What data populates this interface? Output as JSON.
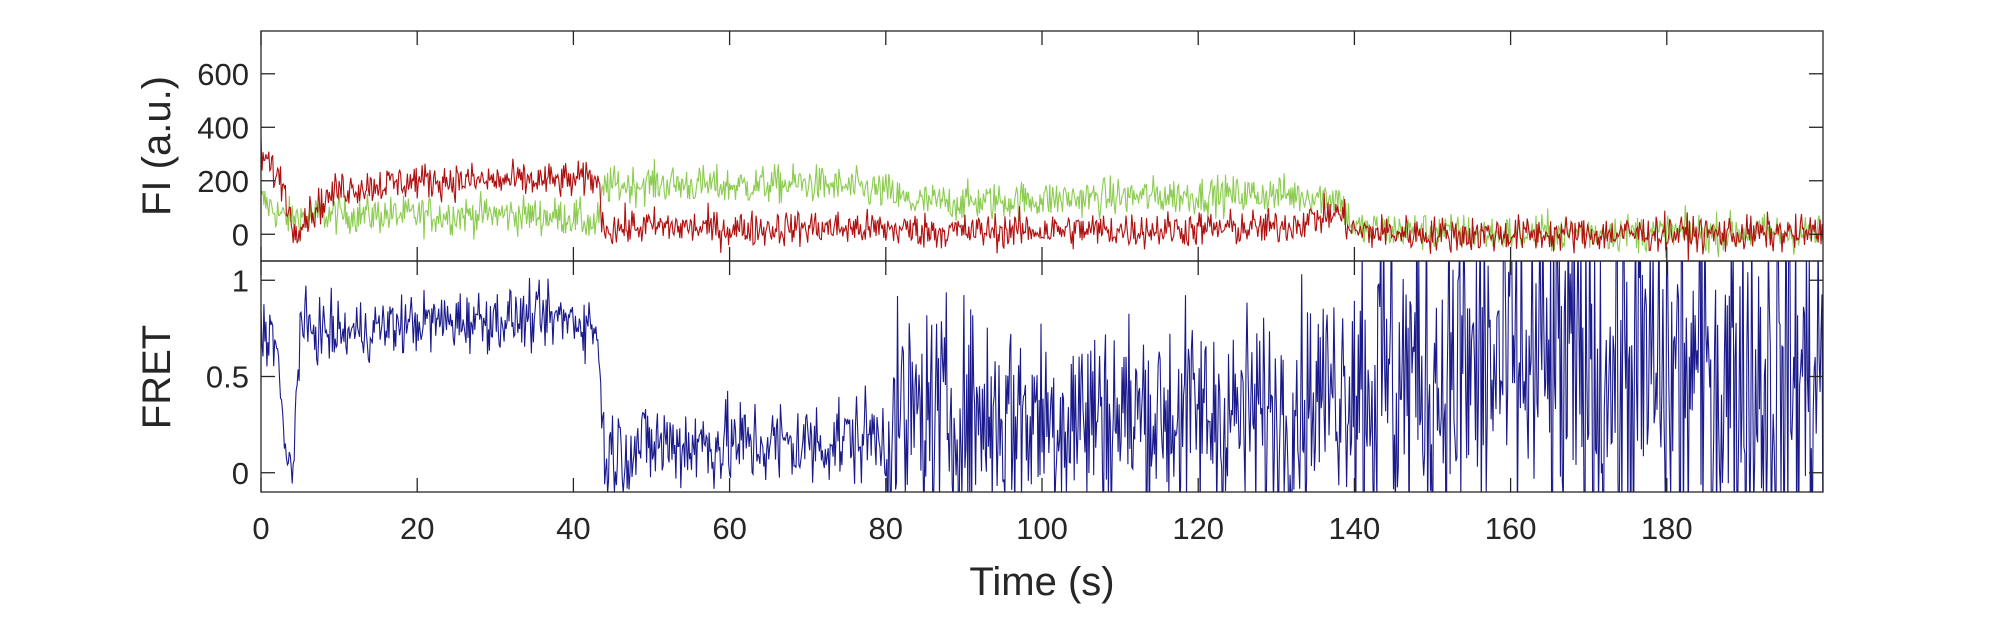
{
  "chart_data": [
    {
      "panel": "top",
      "type": "line",
      "xlabel": "",
      "ylabel": "FI (a.u.)",
      "xlim": [
        0,
        200
      ],
      "ylim": [
        -100,
        760
      ],
      "yticks": [
        0,
        200,
        400,
        600
      ],
      "ytick_labels": [
        "0",
        "200",
        "400",
        "600"
      ],
      "series": [
        {
          "color": "#8ccc50",
          "x": [
            0,
            3,
            10,
            20,
            30,
            40,
            43,
            44,
            50,
            60,
            70,
            80,
            83,
            90,
            100,
            110,
            120,
            130,
            138,
            140,
            150,
            160,
            170,
            180,
            190,
            200
          ],
          "values": [
            130,
            60,
            75,
            70,
            75,
            65,
            30,
            180,
            190,
            180,
            190,
            160,
            120,
            120,
            130,
            140,
            145,
            150,
            140,
            20,
            10,
            0,
            10,
            5,
            5,
            0
          ]
        },
        {
          "color": "#b01010",
          "x": [
            0,
            3,
            4,
            10,
            20,
            30,
            40,
            43,
            44,
            50,
            60,
            70,
            80,
            90,
            100,
            110,
            120,
            130,
            138,
            140,
            150,
            160,
            170,
            180,
            190,
            200
          ],
          "values": [
            300,
            180,
            20,
            170,
            200,
            200,
            200,
            210,
            20,
            30,
            20,
            25,
            20,
            10,
            15,
            15,
            20,
            25,
            80,
            10,
            0,
            0,
            0,
            5,
            0,
            5
          ]
        }
      ]
    },
    {
      "panel": "bottom",
      "type": "line",
      "xlabel": "Time (s)",
      "ylabel": "FRET",
      "xlim": [
        0,
        200
      ],
      "ylim": [
        -0.1,
        1.1
      ],
      "xticks": [
        0,
        20,
        40,
        60,
        80,
        100,
        120,
        140,
        160,
        180
      ],
      "xtick_labels": [
        "0",
        "20",
        "40",
        "60",
        "80",
        "100",
        "120",
        "140",
        "160",
        "180"
      ],
      "yticks": [
        0,
        0.5,
        1
      ],
      "ytick_labels": [
        "0",
        "0.5",
        "1"
      ],
      "series": [
        {
          "color": "#1a1a8c",
          "x": [
            0,
            2,
            3,
            4,
            5,
            10,
            20,
            30,
            40,
            43,
            44,
            50,
            60,
            70,
            80,
            84,
            90,
            100,
            110,
            120,
            130,
            135,
            140,
            150,
            160,
            170,
            180,
            190,
            200
          ],
          "values": [
            0.75,
            0.7,
            0.1,
            0.0,
            0.75,
            0.72,
            0.78,
            0.8,
            0.8,
            0.75,
            0.1,
            0.15,
            0.15,
            0.15,
            0.2,
            0.3,
            0.3,
            0.3,
            0.3,
            0.3,
            0.3,
            0.4,
            0.5,
            0.5,
            0.55,
            0.5,
            0.5,
            0.5,
            0.5
          ]
        }
      ]
    }
  ]
}
